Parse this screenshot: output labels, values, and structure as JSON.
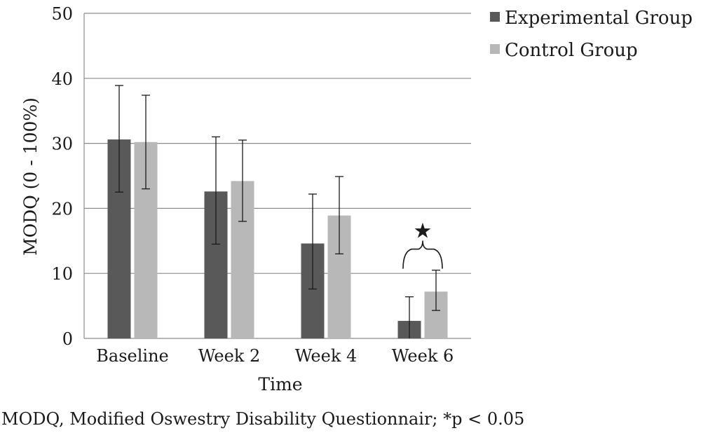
{
  "chart_data": {
    "type": "bar",
    "categories": [
      "Baseline",
      "Week 2",
      "Week 4",
      "Week 6"
    ],
    "series": [
      {
        "name": "Experimental Group",
        "color": "#595959",
        "values": [
          30.6,
          22.6,
          14.6,
          2.7
        ],
        "err_low": [
          22.5,
          14.5,
          7.6,
          0
        ],
        "err_high": [
          38.9,
          31.0,
          22.2,
          6.4
        ]
      },
      {
        "name": "Control Group",
        "color": "#b8b8b8",
        "values": [
          30.2,
          24.2,
          18.9,
          7.2
        ],
        "err_low": [
          23.0,
          18.0,
          13.0,
          4.3
        ],
        "err_high": [
          37.4,
          30.5,
          24.9,
          10.5
        ]
      }
    ],
    "xlabel": "Time",
    "ylabel": "MODQ (0 - 100%)",
    "ylim": [
      0,
      50
    ],
    "yticks": [
      0,
      10,
      20,
      30,
      40,
      50
    ],
    "grid": true,
    "legend_position": "top-right",
    "annotation": {
      "text": "★",
      "category": "Week 6",
      "meaning": "*p < 0.05"
    }
  },
  "footnote": "MODQ, Modified Oswestry Disability Questionnair; *p < 0.05"
}
